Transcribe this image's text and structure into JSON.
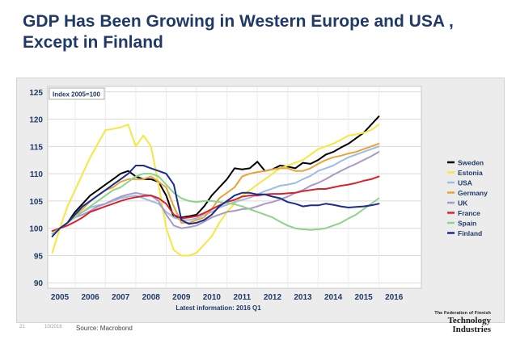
{
  "slide": {
    "title_line1": "GDP Has Been Growing in Western Europe and USA ,",
    "title_line2": "Except in Finland",
    "source": "Source: Macrobond",
    "slide_number": "21",
    "date": "10/2016"
  },
  "logo": {
    "top": "The Federation of Finnish",
    "main": "Technology",
    "sub": "Industries"
  },
  "chart_data": {
    "type": "line",
    "title": "",
    "index_note": "Index 2005=100",
    "xlabel": "Latest information: 2016 Q1",
    "ylabel": "",
    "xlim": [
      2004.6,
      2016.9
    ],
    "ylim": [
      89,
      126
    ],
    "y_ticks": [
      90,
      95,
      100,
      105,
      110,
      115,
      120,
      125
    ],
    "x_ticks": [
      2005,
      2006,
      2007,
      2008,
      2009,
      2010,
      2011,
      2012,
      2013,
      2014,
      2015,
      2016
    ],
    "grid": true,
    "legend_position": "right",
    "series": [
      {
        "name": "Sweden",
        "color": "#000000",
        "x": [
          2004.75,
          2005.0,
          2005.25,
          2005.5,
          2005.75,
          2006.0,
          2006.25,
          2006.5,
          2006.75,
          2007.0,
          2007.25,
          2007.5,
          2007.75,
          2008.0,
          2008.25,
          2008.5,
          2008.75,
          2009.0,
          2009.25,
          2009.5,
          2009.75,
          2010.0,
          2010.25,
          2010.5,
          2010.75,
          2011.0,
          2011.25,
          2011.5,
          2011.75,
          2012.0,
          2012.25,
          2012.5,
          2012.75,
          2013.0,
          2013.25,
          2013.5,
          2013.75,
          2014.0,
          2014.25,
          2014.5,
          2014.75,
          2015.0,
          2015.25,
          2015.5
        ],
        "y": [
          99,
          100,
          101,
          103,
          104.5,
          106,
          107,
          108,
          109,
          110,
          110.5,
          109.5,
          109,
          109,
          108.5,
          106,
          102,
          102,
          102.2,
          102.5,
          104,
          106,
          107.5,
          109,
          111,
          110.8,
          111,
          112.2,
          110.5,
          110.8,
          111.5,
          111.3,
          111,
          112,
          111.8,
          112.5,
          113.5,
          114,
          114.8,
          115.5,
          116.5,
          117.5,
          119,
          120.5
        ]
      },
      {
        "name": "Estonia",
        "color": "#f5e843",
        "x": [
          2004.75,
          2005.0,
          2005.25,
          2005.5,
          2005.75,
          2006.0,
          2006.25,
          2006.5,
          2006.75,
          2007.0,
          2007.25,
          2007.5,
          2007.75,
          2008.0,
          2008.25,
          2008.5,
          2008.75,
          2009.0,
          2009.25,
          2009.5,
          2009.75,
          2010.0,
          2010.25,
          2010.5,
          2010.75,
          2011.0,
          2011.25,
          2011.5,
          2011.75,
          2012.0,
          2012.25,
          2012.5,
          2012.75,
          2013.0,
          2013.25,
          2013.5,
          2013.75,
          2014.0,
          2014.25,
          2014.5,
          2014.75,
          2015.0,
          2015.25,
          2015.5
        ],
        "y": [
          95.5,
          100,
          104,
          107,
          110,
          113,
          115.5,
          118,
          118.2,
          118.5,
          119,
          115,
          117,
          115,
          108,
          100,
          96,
          95,
          95,
          95.5,
          97,
          98.5,
          101,
          103,
          104.5,
          106,
          107,
          108,
          109,
          110,
          111,
          111.5,
          112,
          112.5,
          113.5,
          114.5,
          115,
          115.5,
          116.2,
          117,
          117.2,
          117.5,
          118,
          119
        ]
      },
      {
        "name": "USA",
        "color": "#9dbce6",
        "x": [
          2004.75,
          2005.0,
          2005.25,
          2005.5,
          2005.75,
          2006.0,
          2006.25,
          2006.5,
          2006.75,
          2007.0,
          2007.25,
          2007.5,
          2007.75,
          2008.0,
          2008.25,
          2008.5,
          2008.75,
          2009.0,
          2009.25,
          2009.5,
          2009.75,
          2010.0,
          2010.25,
          2010.5,
          2010.75,
          2011.0,
          2011.25,
          2011.5,
          2011.75,
          2012.0,
          2012.25,
          2012.5,
          2012.75,
          2013.0,
          2013.25,
          2013.5,
          2013.75,
          2014.0,
          2014.25,
          2014.5,
          2014.75,
          2015.0,
          2015.25,
          2015.5
        ],
        "y": [
          99,
          100,
          101,
          102.5,
          103,
          103.8,
          104.2,
          104.5,
          105,
          105.5,
          105.8,
          106,
          105.5,
          105,
          104.5,
          103,
          102,
          101.5,
          101.5,
          101.8,
          102.5,
          103,
          103.8,
          104.3,
          104.8,
          105.2,
          105.6,
          106.2,
          106.8,
          107.3,
          107.8,
          108,
          108.3,
          109,
          109.6,
          110.5,
          111,
          111.5,
          112.3,
          113,
          113.5,
          114,
          114.5,
          115
        ]
      },
      {
        "name": "Germany",
        "color": "#e8a33a",
        "x": [
          2004.75,
          2005.0,
          2005.25,
          2005.5,
          2005.75,
          2006.0,
          2006.25,
          2006.5,
          2006.75,
          2007.0,
          2007.25,
          2007.5,
          2007.75,
          2008.0,
          2008.25,
          2008.5,
          2008.75,
          2009.0,
          2009.25,
          2009.5,
          2009.75,
          2010.0,
          2010.25,
          2010.5,
          2010.75,
          2011.0,
          2011.25,
          2011.5,
          2011.75,
          2012.0,
          2012.25,
          2012.5,
          2012.75,
          2013.0,
          2013.25,
          2013.5,
          2013.75,
          2014.0,
          2014.25,
          2014.5,
          2014.75,
          2015.0,
          2015.25,
          2015.5
        ],
        "y": [
          99,
          100,
          101,
          102.5,
          103.5,
          105,
          106,
          107,
          107.5,
          108.5,
          109,
          109,
          109,
          109.5,
          108.5,
          107.5,
          104,
          101,
          101,
          101.5,
          102,
          103.5,
          105.5,
          106.5,
          107.5,
          109.5,
          110,
          110.3,
          110.5,
          110.8,
          111,
          111,
          110.5,
          110.5,
          111,
          111.8,
          112.5,
          113,
          113.3,
          113.7,
          114,
          114.5,
          115,
          115.5
        ]
      },
      {
        "name": "UK",
        "color": "#a999c7",
        "x": [
          2004.75,
          2005.0,
          2005.25,
          2005.5,
          2005.75,
          2006.0,
          2006.25,
          2006.5,
          2006.75,
          2007.0,
          2007.25,
          2007.5,
          2007.75,
          2008.0,
          2008.25,
          2008.5,
          2008.75,
          2009.0,
          2009.25,
          2009.5,
          2009.75,
          2010.0,
          2010.25,
          2010.5,
          2010.75,
          2011.0,
          2011.25,
          2011.5,
          2011.75,
          2012.0,
          2012.25,
          2012.5,
          2012.75,
          2013.0,
          2013.25,
          2013.5,
          2013.75,
          2014.0,
          2014.25,
          2014.5,
          2014.75,
          2015.0,
          2015.25,
          2015.5
        ],
        "y": [
          99,
          100,
          101,
          102,
          102.5,
          103.2,
          104,
          104.5,
          105.2,
          105.8,
          106.2,
          106.5,
          106.2,
          106,
          105,
          102.5,
          100.5,
          100,
          100.2,
          100.5,
          101.2,
          102,
          102.5,
          103,
          103.2,
          103.5,
          103.6,
          104,
          104.5,
          104.8,
          105.3,
          105.8,
          106.5,
          107,
          107.8,
          108.3,
          109,
          109.8,
          110.5,
          111.2,
          111.8,
          112.5,
          113.2,
          114
        ]
      },
      {
        "name": "France",
        "color": "#d7242c",
        "x": [
          2004.75,
          2005.0,
          2005.25,
          2005.5,
          2005.75,
          2006.0,
          2006.25,
          2006.5,
          2006.75,
          2007.0,
          2007.25,
          2007.5,
          2007.75,
          2008.0,
          2008.25,
          2008.5,
          2008.75,
          2009.0,
          2009.25,
          2009.5,
          2009.75,
          2010.0,
          2010.25,
          2010.5,
          2010.75,
          2011.0,
          2011.25,
          2011.5,
          2011.75,
          2012.0,
          2012.25,
          2012.5,
          2012.75,
          2013.0,
          2013.25,
          2013.5,
          2013.75,
          2014.0,
          2014.25,
          2014.5,
          2014.75,
          2015.0,
          2015.25,
          2015.5
        ],
        "y": [
          99.5,
          100,
          100.5,
          101.2,
          102,
          103,
          103.5,
          104,
          104.5,
          105,
          105.4,
          105.7,
          105.9,
          106,
          105.5,
          104.5,
          102.5,
          101.8,
          102,
          102.2,
          102.8,
          103.5,
          104.2,
          104.8,
          105.2,
          105.8,
          106,
          106,
          106.2,
          106.3,
          106.3,
          106.4,
          106.5,
          106.8,
          107,
          107.2,
          107.2,
          107.5,
          107.8,
          108,
          108.3,
          108.7,
          109,
          109.5
        ]
      },
      {
        "name": "Spain",
        "color": "#8ed38a",
        "x": [
          2004.75,
          2005.0,
          2005.25,
          2005.5,
          2005.75,
          2006.0,
          2006.25,
          2006.5,
          2006.75,
          2007.0,
          2007.25,
          2007.5,
          2007.75,
          2008.0,
          2008.25,
          2008.5,
          2008.75,
          2009.0,
          2009.25,
          2009.5,
          2009.75,
          2010.0,
          2010.25,
          2010.5,
          2010.75,
          2011.0,
          2011.25,
          2011.5,
          2011.75,
          2012.0,
          2012.25,
          2012.5,
          2012.75,
          2013.0,
          2013.25,
          2013.5,
          2013.75,
          2014.0,
          2014.25,
          2014.5,
          2014.75,
          2015.0,
          2015.25,
          2015.5
        ],
        "y": [
          99,
          100,
          101,
          102,
          103,
          104,
          105,
          106,
          107,
          107.5,
          108.5,
          109.5,
          110,
          110,
          109.5,
          108,
          106.5,
          105.5,
          105,
          104.8,
          105,
          105,
          104.8,
          104.6,
          104.4,
          104,
          103.5,
          103,
          102.5,
          102,
          101.2,
          100.5,
          100,
          99.8,
          99.7,
          99.8,
          100,
          100.5,
          101,
          101.8,
          102.5,
          103.5,
          104.5,
          105.5
        ]
      },
      {
        "name": "Finland",
        "color": "#1b2b8e",
        "x": [
          2004.75,
          2005.0,
          2005.25,
          2005.5,
          2005.75,
          2006.0,
          2006.25,
          2006.5,
          2006.75,
          2007.0,
          2007.25,
          2007.5,
          2007.75,
          2008.0,
          2008.25,
          2008.5,
          2008.75,
          2009.0,
          2009.25,
          2009.5,
          2009.75,
          2010.0,
          2010.25,
          2010.5,
          2010.75,
          2011.0,
          2011.25,
          2011.5,
          2011.75,
          2012.0,
          2012.25,
          2012.5,
          2012.75,
          2013.0,
          2013.25,
          2013.5,
          2013.75,
          2014.0,
          2014.25,
          2014.5,
          2014.75,
          2015.0,
          2015.25,
          2015.5
        ],
        "y": [
          98.5,
          100,
          101,
          102.5,
          104,
          105,
          106,
          107,
          108,
          109,
          110,
          111.5,
          111.5,
          111,
          110.5,
          110,
          108,
          101.5,
          100.8,
          101,
          101.5,
          102.5,
          104,
          105,
          106,
          106.5,
          106.5,
          106.2,
          106.2,
          105.8,
          105.5,
          104.8,
          104.5,
          104,
          104.2,
          104.2,
          104.5,
          104.3,
          104,
          103.8,
          103.9,
          104,
          104.2,
          104.5
        ]
      }
    ]
  }
}
